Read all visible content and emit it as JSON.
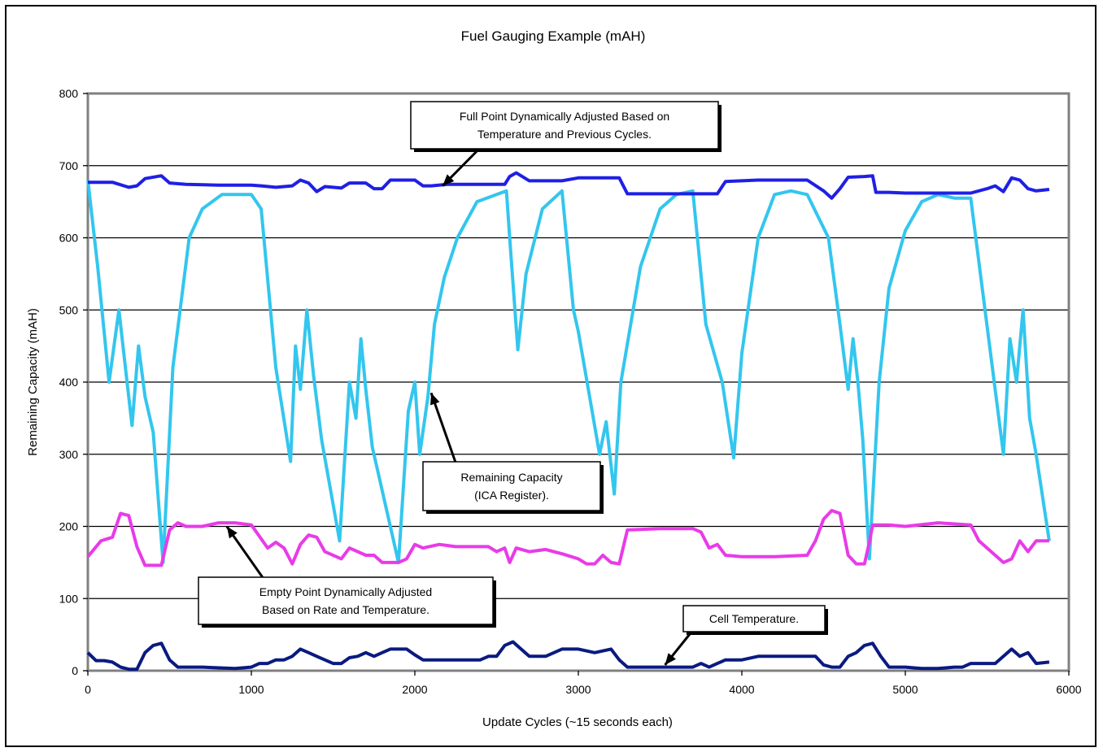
{
  "chart_data": {
    "type": "line",
    "title": "Fuel Gauging Example (mAH)",
    "xlabel": "Update Cycles (~15 seconds each)",
    "ylabel": "Remaining Capacity (mAH)",
    "xlim": [
      0,
      6000
    ],
    "ylim": [
      0,
      800
    ],
    "xticks": [
      0,
      1000,
      2000,
      3000,
      4000,
      5000,
      6000
    ],
    "yticks": [
      0,
      100,
      200,
      300,
      400,
      500,
      600,
      700,
      800
    ],
    "grid": "horizontal",
    "colors": {
      "full_point": "#1f1fe6",
      "remaining_capacity": "#33c6ee",
      "empty_point": "#e83be8",
      "cell_temperature": "#0a1a80"
    },
    "series": [
      {
        "key": "full_point",
        "x": [
          0,
          150,
          250,
          300,
          350,
          450,
          500,
          600,
          800,
          1000,
          1060,
          1150,
          1250,
          1300,
          1350,
          1400,
          1450,
          1550,
          1600,
          1700,
          1750,
          1800,
          1850,
          1900,
          2000,
          2050,
          2100,
          2200,
          2300,
          2400,
          2500,
          2550,
          2580,
          2620,
          2700,
          2900,
          3000,
          3100,
          3250,
          3300,
          3450,
          3600,
          3750,
          3800,
          3850,
          3900,
          4100,
          4300,
          4400,
          4500,
          4550,
          4600,
          4650,
          4750,
          4800,
          4820,
          4900,
          5000,
          5200,
          5400,
          5500,
          5550,
          5600,
          5650,
          5700,
          5750,
          5800,
          5880
        ],
        "y": [
          677,
          677,
          670,
          672,
          682,
          686,
          676,
          674,
          673,
          673,
          672,
          670,
          672,
          680,
          676,
          664,
          671,
          669,
          676,
          676,
          668,
          668,
          680,
          680,
          680,
          672,
          672,
          674,
          674,
          674,
          674,
          674,
          685,
          690,
          679,
          679,
          683,
          683,
          683,
          661,
          661,
          661,
          661,
          661,
          661,
          678,
          680,
          680,
          680,
          665,
          655,
          668,
          684,
          685,
          686,
          663,
          663,
          662,
          662,
          662,
          668,
          672,
          664,
          683,
          680,
          668,
          665,
          667
        ]
      },
      {
        "key": "remaining_capacity",
        "x": [
          0,
          60,
          130,
          190,
          230,
          270,
          310,
          350,
          400,
          460,
          520,
          620,
          700,
          820,
          1000,
          1060,
          1150,
          1240,
          1270,
          1300,
          1340,
          1380,
          1430,
          1540,
          1600,
          1640,
          1670,
          1700,
          1740,
          1790,
          1900,
          1960,
          2000,
          2030,
          2080,
          2120,
          2180,
          2260,
          2380,
          2500,
          2560,
          2580,
          2630,
          2680,
          2780,
          2900,
          2970,
          3000,
          3130,
          3170,
          3220,
          3260,
          3380,
          3500,
          3600,
          3700,
          3780,
          3880,
          3950,
          4000,
          4100,
          4200,
          4300,
          4400,
          4530,
          4600,
          4650,
          4680,
          4710,
          4740,
          4780,
          4840,
          4900,
          5000,
          5100,
          5200,
          5300,
          5400,
          5600,
          5640,
          5680,
          5720,
          5760,
          5800,
          5880
        ],
        "y": [
          680,
          560,
          400,
          500,
          420,
          340,
          450,
          380,
          330,
          150,
          420,
          600,
          640,
          660,
          660,
          640,
          420,
          290,
          450,
          390,
          500,
          410,
          320,
          180,
          400,
          350,
          460,
          390,
          310,
          260,
          150,
          360,
          400,
          300,
          380,
          480,
          545,
          600,
          650,
          660,
          665,
          600,
          445,
          550,
          640,
          665,
          500,
          470,
          300,
          345,
          245,
          400,
          560,
          640,
          660,
          665,
          480,
          400,
          295,
          440,
          600,
          660,
          665,
          660,
          600,
          480,
          390,
          460,
          400,
          320,
          155,
          400,
          530,
          610,
          650,
          660,
          655,
          655,
          300,
          460,
          400,
          500,
          350,
          300,
          180
        ]
      },
      {
        "key": "empty_point",
        "x": [
          0,
          80,
          150,
          200,
          250,
          300,
          350,
          450,
          500,
          550,
          600,
          700,
          800,
          900,
          1000,
          1100,
          1150,
          1200,
          1250,
          1300,
          1350,
          1400,
          1450,
          1550,
          1600,
          1700,
          1750,
          1800,
          1850,
          1900,
          1950,
          2000,
          2050,
          2150,
          2250,
          2350,
          2450,
          2500,
          2550,
          2580,
          2620,
          2700,
          2800,
          2900,
          3000,
          3050,
          3100,
          3150,
          3200,
          3250,
          3300,
          3500,
          3700,
          3750,
          3800,
          3850,
          3900,
          4000,
          4200,
          4400,
          4450,
          4500,
          4550,
          4600,
          4650,
          4700,
          4750,
          4780,
          4800,
          4850,
          4900,
          5000,
          5200,
          5400,
          5450,
          5500,
          5550,
          5600,
          5650,
          5700,
          5750,
          5800,
          5880
        ],
        "y": [
          158,
          180,
          185,
          218,
          215,
          172,
          146,
          146,
          195,
          205,
          200,
          200,
          205,
          205,
          202,
          170,
          178,
          170,
          148,
          175,
          188,
          185,
          165,
          155,
          170,
          160,
          160,
          150,
          150,
          150,
          155,
          175,
          170,
          175,
          172,
          172,
          172,
          165,
          170,
          150,
          170,
          165,
          168,
          162,
          155,
          148,
          148,
          160,
          150,
          148,
          195,
          197,
          197,
          192,
          170,
          175,
          160,
          158,
          158,
          160,
          180,
          210,
          222,
          218,
          160,
          148,
          148,
          178,
          202,
          202,
          202,
          200,
          205,
          202,
          180,
          170,
          160,
          150,
          155,
          180,
          165,
          180,
          180
        ]
      },
      {
        "key": "cell_temperature",
        "x": [
          0,
          50,
          100,
          150,
          200,
          250,
          300,
          350,
          400,
          450,
          500,
          550,
          700,
          900,
          1000,
          1050,
          1100,
          1150,
          1200,
          1250,
          1300,
          1350,
          1400,
          1450,
          1500,
          1550,
          1600,
          1650,
          1700,
          1750,
          1800,
          1850,
          1950,
          2000,
          2050,
          2100,
          2200,
          2300,
          2400,
          2450,
          2500,
          2550,
          2600,
          2650,
          2700,
          2800,
          2900,
          3000,
          3100,
          3200,
          3250,
          3300,
          3400,
          3500,
          3600,
          3700,
          3750,
          3800,
          3850,
          3900,
          4000,
          4100,
          4200,
          4300,
          4400,
          4450,
          4500,
          4550,
          4600,
          4650,
          4700,
          4750,
          4800,
          4850,
          4900,
          5000,
          5100,
          5200,
          5300,
          5350,
          5400,
          5500,
          5550,
          5600,
          5650,
          5700,
          5750,
          5800,
          5880
        ],
        "y": [
          25,
          14,
          14,
          12,
          5,
          2,
          2,
          25,
          35,
          38,
          15,
          5,
          5,
          3,
          5,
          10,
          10,
          15,
          15,
          20,
          30,
          25,
          20,
          15,
          10,
          10,
          18,
          20,
          25,
          20,
          25,
          30,
          30,
          22,
          15,
          15,
          15,
          15,
          15,
          20,
          20,
          35,
          40,
          30,
          20,
          20,
          30,
          30,
          25,
          30,
          15,
          5,
          5,
          5,
          5,
          5,
          10,
          5,
          10,
          15,
          15,
          20,
          20,
          20,
          20,
          20,
          8,
          5,
          5,
          20,
          25,
          35,
          38,
          20,
          5,
          5,
          3,
          3,
          5,
          5,
          10,
          10,
          10,
          20,
          30,
          20,
          25,
          10,
          12
        ]
      }
    ],
    "annotations": [
      {
        "lines": [
          "Full Point Dynamically Adjusted Based on",
          "Temperature and Previous Cycles."
        ],
        "arrow_x": 2170,
        "arrow_y": 672
      },
      {
        "lines": [
          "Remaining Capacity",
          "(ICA Register)."
        ],
        "arrow_x": 2100,
        "arrow_y": 385
      },
      {
        "lines": [
          "Empty Point Dynamically Adjusted",
          "Based on Rate and Temperature."
        ],
        "arrow_x": 850,
        "arrow_y": 200
      },
      {
        "lines": [
          "Cell Temperature."
        ],
        "arrow_x": 3530,
        "arrow_y": 8
      }
    ]
  }
}
